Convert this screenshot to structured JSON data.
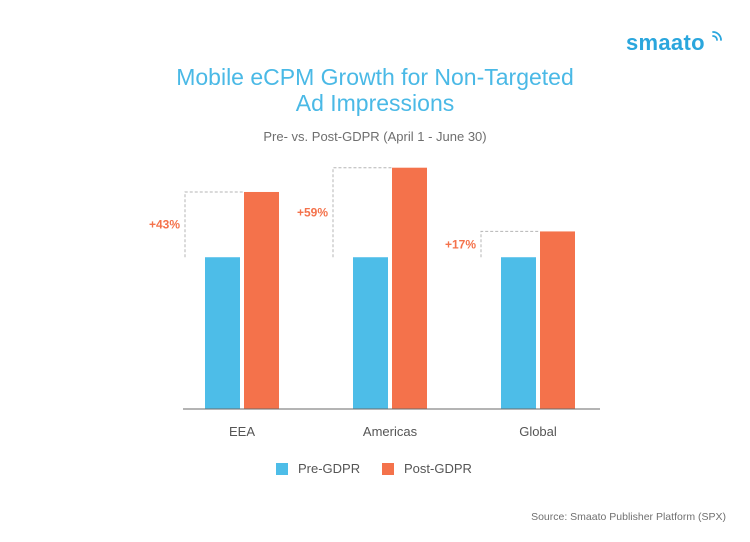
{
  "brand": {
    "logo_text": "smaato"
  },
  "chart_data": {
    "type": "bar",
    "title": "Mobile eCPM Growth for Non-Targeted Ad Impressions",
    "title_lines": [
      "Mobile eCPM Growth for Non-Targeted",
      "Ad Impressions"
    ],
    "subtitle": "Pre- vs. Post-GDPR (April 1 - June 30)",
    "categories": [
      "EEA",
      "Americas",
      "Global"
    ],
    "series": [
      {
        "name": "Pre-GDPR",
        "color": "#4dbde8",
        "values": [
          100,
          100,
          100
        ]
      },
      {
        "name": "Post-GDPR",
        "color": "#f4724b",
        "values": [
          143,
          159,
          117
        ]
      }
    ],
    "annotations": [
      "+43%",
      "+59%",
      "+17%"
    ],
    "annotation_color": "#f4724b",
    "ylim": [
      0,
      170
    ],
    "grid": false,
    "legend_position": "bottom"
  },
  "source": "Source: Smaato Publisher Platform (SPX)"
}
